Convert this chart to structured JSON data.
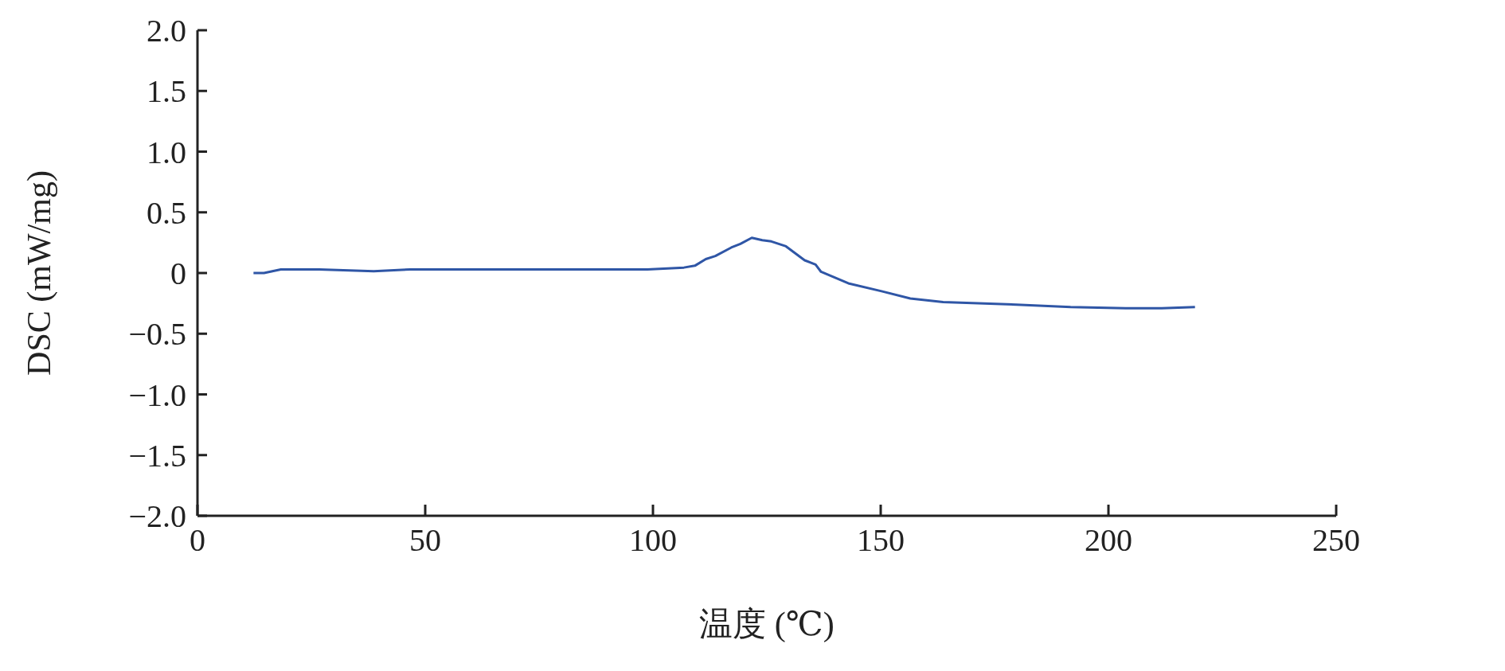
{
  "chart_data": {
    "type": "line",
    "xlabel": "温度 (℃)",
    "ylabel": "DSC (mW/mg)",
    "xlim": [
      0,
      250
    ],
    "xticks": [
      0,
      50,
      100,
      150,
      200,
      250
    ],
    "ylim": [
      -2,
      2
    ],
    "yticks": [
      {
        "value": -2,
        "label": "−2.0"
      },
      {
        "value": -1.5,
        "label": "−1.5"
      },
      {
        "value": -1,
        "label": "−1.0"
      },
      {
        "value": -0.5,
        "label": "−0.5"
      },
      0,
      {
        "value": 0.5,
        "label": "0.5"
      },
      {
        "value": 1,
        "label": "1.0"
      },
      {
        "value": 1.5,
        "label": "1.5"
      },
      {
        "value": 2,
        "label": "2.0"
      }
    ],
    "grid": false,
    "marker": "none",
    "line_style": "solid",
    "x": [
      12.3,
      14.6,
      18.3,
      26.7,
      38.7,
      46.7,
      70,
      98.8,
      106.8,
      109.2,
      111.6,
      113.7,
      117.2,
      119.2,
      121.7,
      124,
      126,
      129.2,
      133.3,
      135.7,
      136.9,
      142.9,
      150.2,
      156.5,
      163.7,
      179.8,
      191.7,
      203.8,
      211.7,
      219
    ],
    "series": [
      {
        "color": "#2f56a6",
        "values": [
          0,
          0,
          0.03,
          0.03,
          0.015,
          0.03,
          0.03,
          0.03,
          0.045,
          0.06,
          0.115,
          0.14,
          0.21,
          0.24,
          0.29,
          0.27,
          0.26,
          0.22,
          0.105,
          0.07,
          0.01,
          -0.085,
          -0.15,
          -0.21,
          -0.24,
          -0.26,
          -0.28,
          -0.29,
          -0.29,
          -0.28
        ]
      }
    ]
  }
}
